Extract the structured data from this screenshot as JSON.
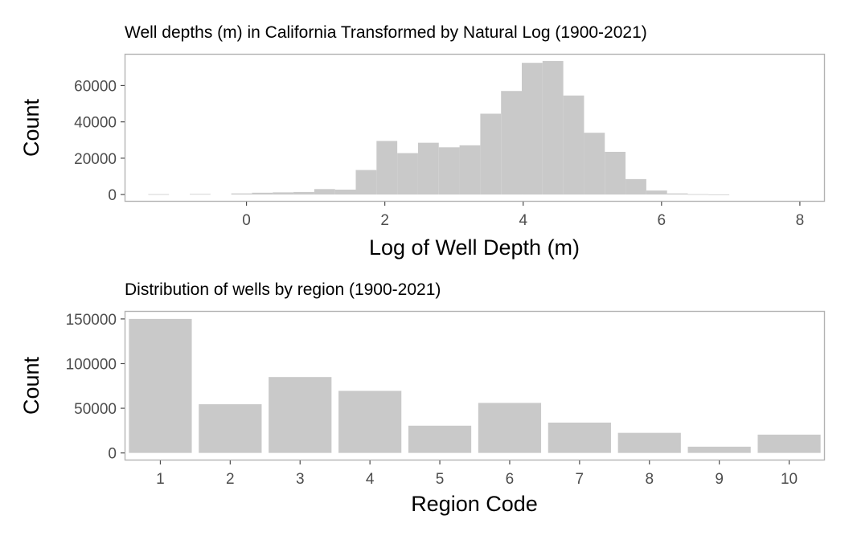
{
  "chart_data": [
    {
      "type": "bar",
      "subtype": "histogram",
      "title": "Well depths (m) in California Transformed by Natural Log (1900-2021)",
      "xlabel": "Log of Well Depth (m)",
      "ylabel": "Count",
      "xlim": [
        -1.75,
        8.35
      ],
      "ylim": [
        -3500,
        77000
      ],
      "xticks": [
        "0",
        "2",
        "4",
        "6",
        "8"
      ],
      "yticks": [
        "0",
        "20000",
        "40000",
        "60000"
      ],
      "bin_width": 0.3,
      "bins_start": [
        -1.42,
        -1.12,
        -0.82,
        -0.52,
        -0.22,
        0.08,
        0.38,
        0.68,
        0.98,
        1.28,
        1.58,
        1.88,
        2.18,
        2.48,
        2.78,
        3.08,
        3.38,
        3.68,
        3.98,
        4.28,
        4.58,
        4.88,
        5.18,
        5.48,
        5.78,
        6.08,
        6.38,
        6.68,
        6.98,
        7.28,
        7.58,
        7.88
      ],
      "values": [
        200,
        0,
        300,
        0,
        600,
        1000,
        1200,
        1400,
        3000,
        2700,
        13500,
        29500,
        22800,
        28500,
        26000,
        27100,
        44500,
        57000,
        72500,
        73500,
        54500,
        34000,
        23500,
        8500,
        2200,
        600,
        200,
        50,
        0,
        0,
        0,
        0
      ],
      "color": "#c9c9c9",
      "grid": false
    },
    {
      "type": "bar",
      "title": "Distribution of wells by region (1900-2021)",
      "xlabel": "Region Code",
      "ylabel": "Count",
      "ylim": [
        -7500,
        158000
      ],
      "categories": [
        "1",
        "2",
        "3",
        "4",
        "5",
        "6",
        "7",
        "8",
        "9",
        "10"
      ],
      "yticks": [
        "0",
        "50000",
        "100000",
        "150000"
      ],
      "values": [
        150000,
        54500,
        85000,
        69500,
        30500,
        56000,
        34000,
        22500,
        7000,
        20500
      ],
      "color": "#c9c9c9",
      "grid": false
    }
  ]
}
